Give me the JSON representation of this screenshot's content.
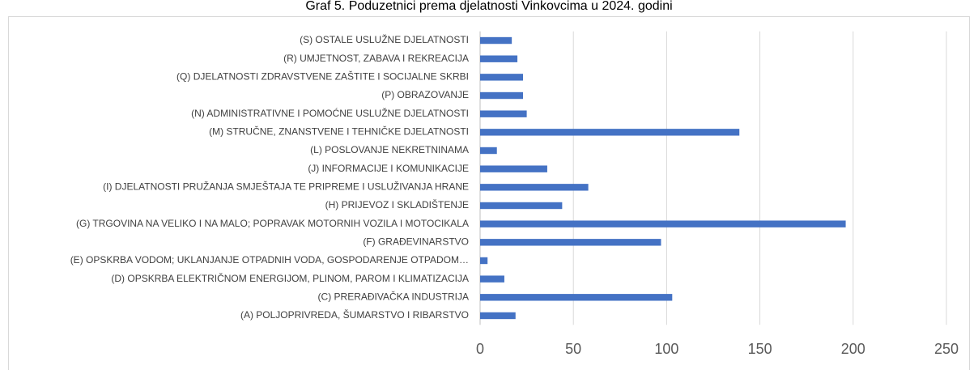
{
  "chart_data": {
    "type": "bar",
    "orientation": "horizontal",
    "title": "Graf 5. Poduzetnici prema djelatnosti Vinkovcima u 2024. godini",
    "categories": [
      "(A) POLJOPRIVREDA, ŠUMARSTVO I RIBARSTVO",
      "(C) PRERAĐIVAČKA INDUSTRIJA",
      "(D) OPSKRBA ELEKTRIČNOM ENERGIJOM, PLINOM, PAROM I KLIMATIZACIJA",
      "(E) OPSKRBA VODOM; UKLANJANJE OTPADNIH VODA, GOSPODARENJE OTPADOM…",
      "(F) GRAĐEVINARSTVO",
      "(G) TRGOVINA NA VELIKO I NA MALO; POPRAVAK MOTORNIH VOZILA I MOTOCIKALA",
      "(H) PRIJEVOZ I SKLADIŠTENJE",
      "(I) DJELATNOSTI PRUŽANJA SMJEŠTAJA TE PRIPREME I USLUŽIVANJA HRANE",
      "(J) INFORMACIJE I KOMUNIKACIJE",
      "(L) POSLOVANJE NEKRETNINAMA",
      "(M) STRUČNE, ZNANSTVENE I TEHNIČKE DJELATNOSTI",
      "(N) ADMINISTRATIVNE I POMOĆNE USLUŽNE DJELATNOSTI",
      "(P) OBRAZOVANJE",
      "(Q) DJELATNOSTI ZDRAVSTVENE ZAŠTITE I SOCIJALNE SKRBI",
      "(R) UMJETNOST, ZABAVA I REKREACIJA",
      "(S) OSTALE USLUŽNE DJELATNOSTI"
    ],
    "values": [
      19,
      103,
      13,
      4,
      97,
      196,
      44,
      58,
      36,
      9,
      139,
      25,
      23,
      23,
      20,
      17
    ],
    "color": "#4472c4",
    "xlim": [
      0,
      250
    ],
    "xticks": [
      0,
      50,
      100,
      150,
      200,
      250
    ],
    "grid": true
  }
}
